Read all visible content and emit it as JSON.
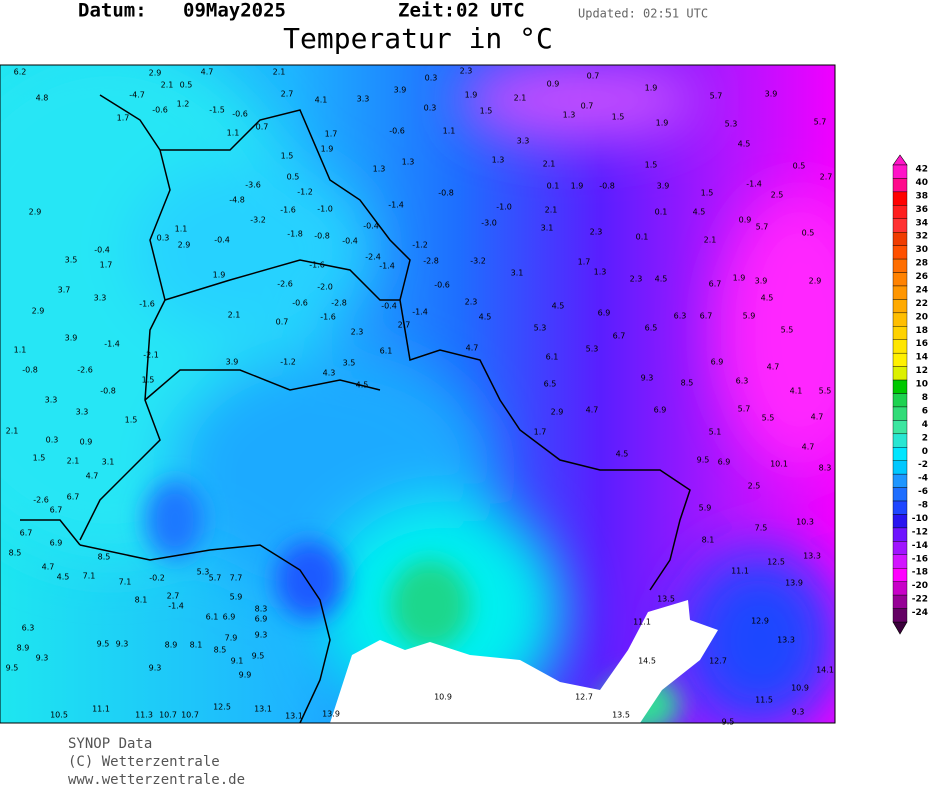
{
  "header": {
    "date_label": "Datum:",
    "date": "09May2025",
    "time_label": "Zeit:",
    "time": "02 UTC",
    "updated": "Updated: 02:51 UTC",
    "title": "Temperatur in °C"
  },
  "legend": {
    "ticks": [
      42,
      40,
      38,
      36,
      34,
      32,
      30,
      28,
      26,
      24,
      22,
      20,
      18,
      16,
      14,
      12,
      10,
      8,
      6,
      4,
      2,
      0,
      -2,
      -4,
      -6,
      -8,
      -10,
      -12,
      -14,
      -16,
      -18,
      -20,
      -22,
      -24
    ],
    "colors": [
      "#ff14c8",
      "#ff0a8c",
      "#ff0000",
      "#ff1e1e",
      "#ff3232",
      "#f03c00",
      "#ff5000",
      "#ff6e00",
      "#ff8200",
      "#ff9600",
      "#ffaa00",
      "#ffbe00",
      "#ffd200",
      "#ffe600",
      "#fff000",
      "#dcf000",
      "#00c800",
      "#1ed250",
      "#32dc78",
      "#3ce6a0",
      "#28e6d2",
      "#00e6ff",
      "#00c8ff",
      "#1e96ff",
      "#1e6eff",
      "#1e46ff",
      "#2814f0",
      "#6e14ff",
      "#a014ff",
      "#d214ff",
      "#ff00ff",
      "#c800c8",
      "#960096",
      "#640064"
    ]
  },
  "stations": {
    "values": [
      "6.2",
      "4.8",
      "2.9",
      "2.1",
      "0.5",
      "4.7",
      "1.2",
      "-4.7",
      "1.7",
      "-0.6",
      "-1.5",
      "-0.6",
      "2.1",
      "2.7",
      "4.1",
      "3.3",
      "3.9",
      "0.3",
      "2.3",
      "0.9",
      "0.7",
      "1.9",
      "5.7",
      "3.9",
      "5.7",
      "5.3",
      "4.5",
      "0.5",
      "2.7",
      "-1.4",
      "2.5",
      "1.5",
      "4.5",
      "0.9",
      "5.7",
      "0.5",
      "2.1",
      "0.1",
      "3.9",
      "1.5",
      "-0.8",
      "1.9",
      "0.1",
      "2.1",
      "3.3",
      "1.3",
      "-0.8",
      "-1.0",
      "2.1",
      "-3.0",
      "3.1",
      "2.3",
      "0.1",
      "1.7",
      "1.3",
      "2.3",
      "4.5",
      "6.7",
      "1.9",
      "3.9",
      "2.9",
      "4.5",
      "5.9",
      "5.5",
      "6.7",
      "6.3",
      "6.5",
      "6.7",
      "6.9",
      "4.5",
      "5.3",
      "5.3",
      "6.1",
      "6.5",
      "2.9",
      "4.7",
      "1.7",
      "4.5",
      "6.9",
      "8.5",
      "9.3",
      "6.9",
      "6.3",
      "4.7",
      "5.7",
      "5.5",
      "4.1",
      "5.5",
      "4.7",
      "4.7",
      "8.3",
      "10.1",
      "5.1",
      "9.5",
      "6.9",
      "2.5",
      "5.9",
      "8.1",
      "7.5",
      "10.3",
      "13.3",
      "12.5",
      "11.1",
      "13.9",
      "13.5",
      "11.1",
      "12.9",
      "13.3",
      "12.7",
      "14.5",
      "14.1",
      "10.9",
      "11.5",
      "9.3",
      "9.5",
      "13.5",
      "12.7",
      "10.9",
      "13.9",
      "13.1",
      "13.1",
      "12.5",
      "10.7",
      "10.7",
      "11.3",
      "11.1",
      "10.5",
      "2.9",
      "3.5",
      "1.7",
      "-0.4",
      "3.7",
      "3.3",
      "-1.6",
      "2.9",
      "3.9",
      "-1.4",
      "1.1",
      "-0.8",
      "-2.6",
      "-0.8",
      "3.3",
      "3.3",
      "1.5",
      "2.1",
      "0.3",
      "0.9",
      "2.1",
      "3.1",
      "4.7",
      "1.5",
      "6.7",
      "-2.6",
      "6.7",
      "6.7",
      "6.9",
      "8.5",
      "8.5",
      "4.7",
      "4.5",
      "7.1",
      "7.1",
      "-0.2",
      "8.1",
      "2.7",
      "5.3",
      "7.7",
      "5.7",
      "5.9",
      "8.3",
      "6.1",
      "6.9",
      "6.9",
      "-1.4",
      "7.9",
      "9.3",
      "8.5",
      "9.1",
      "9.5",
      "9.9",
      "8.9",
      "8.1",
      "9.5",
      "9.3",
      "9.3",
      "9.5",
      "9.3",
      "8.9",
      "6.3",
      "1.1",
      "0.7",
      "1.5",
      "0.5",
      "-3.6",
      "-1.6",
      "-1.0",
      "-1.2",
      "-4.8",
      "-3.2",
      "-0.4",
      "1.1",
      "2.9",
      "0.3",
      "1.9",
      "-1.8",
      "-0.8",
      "-0.4",
      "-0.4",
      "-2.4",
      "-1.6",
      "-2.0",
      "-2.6",
      "-0.6",
      "-2.8",
      "-1.6",
      "0.7",
      "2.1",
      "2.3",
      "6.1",
      "2.7",
      "-0.4",
      "-1.4",
      "-0.6",
      "-2.8",
      "-1.2",
      "-1.4",
      "-1.4",
      "-3.2",
      "3.1",
      "2.3",
      "4.5",
      "4.7",
      "3.5",
      "4.3",
      "-1.2",
      "3.9",
      "-2.1",
      "1.5",
      "4.5",
      "1.7",
      "1.9",
      "1.3",
      "1.3",
      "-0.6",
      "1.1",
      "0.3",
      "1.9",
      "1.5",
      "2.1",
      "1.3",
      "0.7",
      "1.5",
      "1.9"
    ]
  },
  "footer": {
    "source": "SYNOP Data",
    "copyright": "(C) Wetterzentrale",
    "url": "www.wetterzentrale.de"
  }
}
